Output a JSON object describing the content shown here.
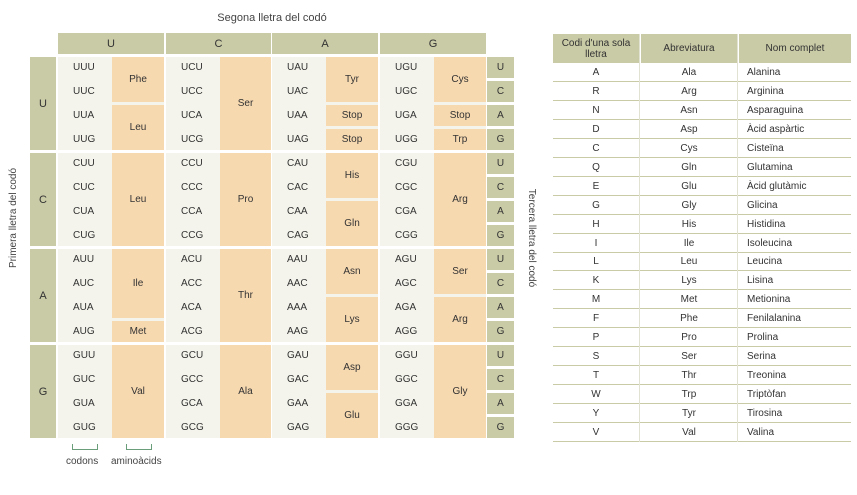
{
  "left_table": {
    "title": "Segona lletra del codó",
    "left_axis_label": "Primera lletra del codó",
    "right_axis_label": "Tercera lletra del codó",
    "second_letters": [
      "U",
      "C",
      "A",
      "G"
    ],
    "first_letters": [
      "U",
      "C",
      "A",
      "G"
    ],
    "third_letters": [
      "U",
      "C",
      "A",
      "G"
    ],
    "columns": [
      {
        "codons": [
          "UUU",
          "UUC",
          "UUA",
          "UUG",
          "CUU",
          "CUC",
          "CUA",
          "CUG",
          "AUU",
          "AUC",
          "AUA",
          "AUG",
          "GUU",
          "GUC",
          "GUA",
          "GUG"
        ],
        "aminoacids": [
          {
            "label": "Phe",
            "rows": 2
          },
          {
            "label": "Leu",
            "rows": 2
          },
          {
            "label": "Leu",
            "rows": 4
          },
          {
            "label": "Ile",
            "rows": 3
          },
          {
            "label": "Met",
            "rows": 1
          },
          {
            "label": "Val",
            "rows": 4
          }
        ]
      },
      {
        "codons": [
          "UCU",
          "UCC",
          "UCA",
          "UCG",
          "CCU",
          "CCC",
          "CCA",
          "CCG",
          "ACU",
          "ACC",
          "ACA",
          "ACG",
          "GCU",
          "GCC",
          "GCA",
          "GCG"
        ],
        "aminoacids": [
          {
            "label": "Ser",
            "rows": 4
          },
          {
            "label": "Pro",
            "rows": 4
          },
          {
            "label": "Thr",
            "rows": 4
          },
          {
            "label": "Ala",
            "rows": 4
          }
        ]
      },
      {
        "codons": [
          "UAU",
          "UAC",
          "UAA",
          "UAG",
          "CAU",
          "CAC",
          "CAA",
          "CAG",
          "AAU",
          "AAC",
          "AAA",
          "AAG",
          "GAU",
          "GAC",
          "GAA",
          "GAG"
        ],
        "aminoacids": [
          {
            "label": "Tyr",
            "rows": 2
          },
          {
            "label": "Stop",
            "rows": 1
          },
          {
            "label": "Stop",
            "rows": 1
          },
          {
            "label": "His",
            "rows": 2
          },
          {
            "label": "Gln",
            "rows": 2
          },
          {
            "label": "Asn",
            "rows": 2
          },
          {
            "label": "Lys",
            "rows": 2
          },
          {
            "label": "Asp",
            "rows": 2
          },
          {
            "label": "Glu",
            "rows": 2
          }
        ]
      },
      {
        "codons": [
          "UGU",
          "UGC",
          "UGA",
          "UGG",
          "CGU",
          "CGC",
          "CGA",
          "CGG",
          "AGU",
          "AGC",
          "AGA",
          "AGG",
          "GGU",
          "GGC",
          "GGA",
          "GGG"
        ],
        "aminoacids": [
          {
            "label": "Cys",
            "rows": 2
          },
          {
            "label": "Stop",
            "rows": 1
          },
          {
            "label": "Trp",
            "rows": 1
          },
          {
            "label": "Arg",
            "rows": 4
          },
          {
            "label": "Ser",
            "rows": 2
          },
          {
            "label": "Arg",
            "rows": 2
          },
          {
            "label": "Gly",
            "rows": 4
          }
        ]
      }
    ],
    "legend": {
      "codons": "codons",
      "aminoacids": "aminoàcids"
    }
  },
  "right_table": {
    "headers": [
      "Codi d'una sola lletra",
      "Abreviatura",
      "Nom complet"
    ],
    "rows": [
      [
        "A",
        "Ala",
        "Alanina"
      ],
      [
        "R",
        "Arg",
        "Arginina"
      ],
      [
        "N",
        "Asn",
        "Asparaguina"
      ],
      [
        "D",
        "Asp",
        "Àcid aspàrtic"
      ],
      [
        "C",
        "Cys",
        "Cisteïna"
      ],
      [
        "Q",
        "Gln",
        "Glutamina"
      ],
      [
        "E",
        "Glu",
        "Àcid glutàmic"
      ],
      [
        "G",
        "Gly",
        "Glicina"
      ],
      [
        "H",
        "His",
        "Histidina"
      ],
      [
        "I",
        "Ile",
        "Isoleucina"
      ],
      [
        "L",
        "Leu",
        "Leucina"
      ],
      [
        "K",
        "Lys",
        "Lisina"
      ],
      [
        "M",
        "Met",
        "Metionina"
      ],
      [
        "F",
        "Phe",
        "Fenilalanina"
      ],
      [
        "P",
        "Pro",
        "Prolina"
      ],
      [
        "S",
        "Ser",
        "Serina"
      ],
      [
        "T",
        "Thr",
        "Treonina"
      ],
      [
        "W",
        "Trp",
        "Triptòfan"
      ],
      [
        "Y",
        "Tyr",
        "Tirosina"
      ],
      [
        "V",
        "Val",
        "Valina"
      ]
    ]
  }
}
